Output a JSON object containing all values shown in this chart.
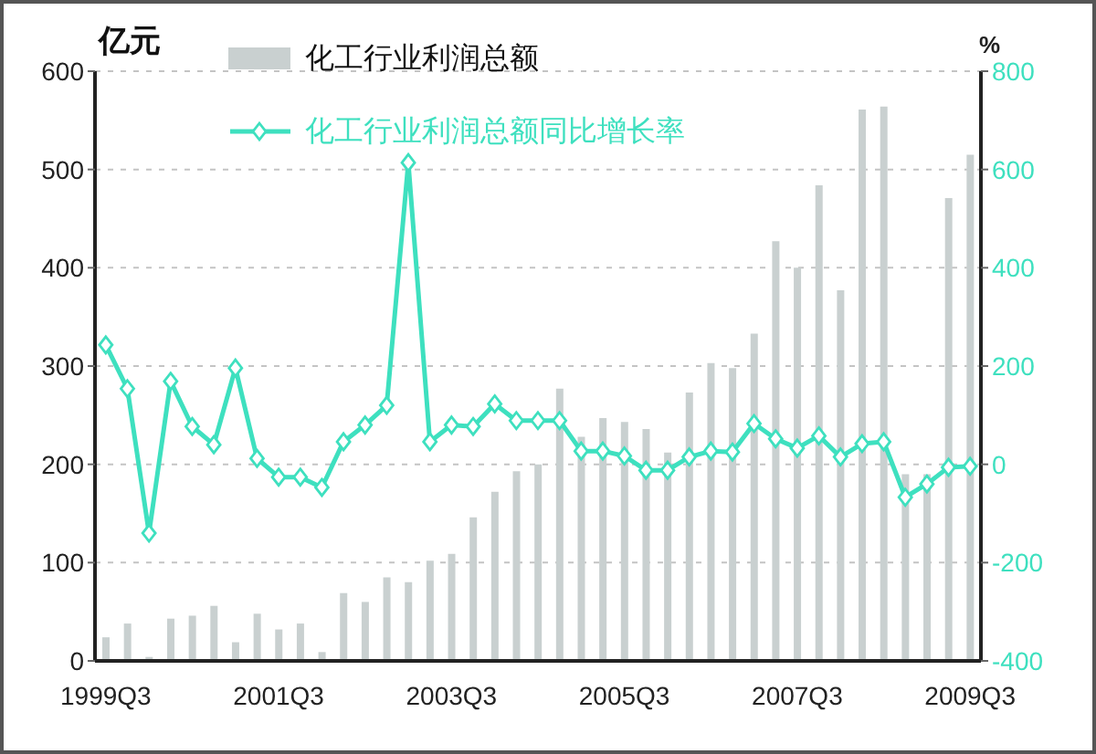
{
  "chart_data": {
    "type": "bar",
    "ylabel": "亿元",
    "y2label": "%",
    "legend": "top",
    "grid": "y",
    "categories": [
      "1999Q3",
      null,
      null,
      null,
      null,
      null,
      null,
      null,
      "2001Q3",
      null,
      null,
      null,
      null,
      null,
      null,
      null,
      "2003Q3",
      null,
      null,
      null,
      null,
      null,
      null,
      null,
      "2005Q3",
      null,
      null,
      null,
      null,
      null,
      null,
      null,
      "2007Q3",
      null,
      null,
      null,
      null,
      null,
      null,
      null,
      "2009Q3"
    ],
    "ylim": [
      0,
      600
    ],
    "yticks": [
      0,
      100,
      200,
      300,
      400,
      500,
      600
    ],
    "y2lim": [
      -400,
      800
    ],
    "y2ticks": [
      -400,
      -200,
      0,
      200,
      400,
      600,
      800
    ],
    "series": [
      {
        "name": "化工行业利润总额",
        "color": "#c9d0d0",
        "values": [
          24,
          38,
          4,
          43,
          46,
          56,
          19,
          48,
          32,
          38,
          9,
          69,
          60,
          85,
          80,
          102,
          109,
          146,
          172,
          193,
          200,
          277,
          228,
          247,
          243,
          236,
          212,
          273,
          303,
          298,
          333,
          427,
          400,
          484,
          377,
          561,
          564,
          190,
          190,
          471,
          515
        ]
      },
      {
        "name": "化工行业利润总额同比增长率",
        "type": "line",
        "axis": "y2",
        "color": "#3ee0bf",
        "marker": "diamond",
        "values": [
          243,
          154,
          -140,
          169,
          77,
          40,
          196,
          12,
          -26,
          -26,
          -47,
          46,
          80,
          120,
          614,
          46,
          80,
          77,
          123,
          89,
          89,
          89,
          27,
          27,
          17,
          -12,
          -12,
          15,
          27,
          25,
          83,
          52,
          33,
          58,
          15,
          42,
          46,
          -67,
          -40,
          -6,
          -4
        ]
      }
    ]
  }
}
